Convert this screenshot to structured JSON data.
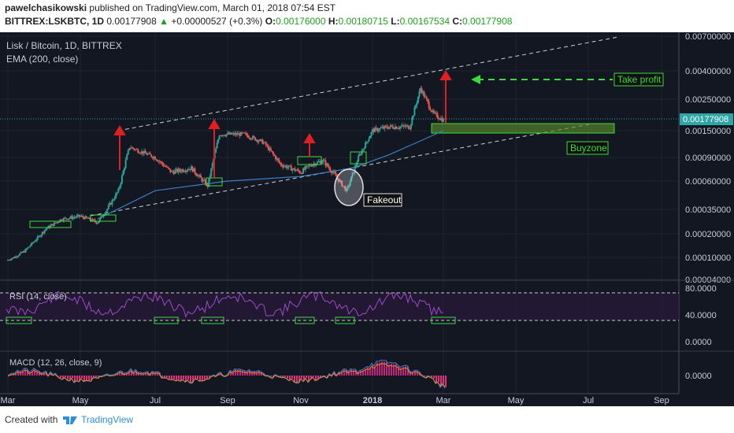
{
  "header": {
    "author": "pawelchasikowski",
    "published_text": "published on TradingView.com, March 01, 2018 07:54 EST",
    "symbol_line": "BITTREX:LSKBTC, 1D",
    "last_price": "0.00177908",
    "change": "+0.00000527 (+0.3%)",
    "o_label": "O:",
    "o_value": "0.00176000",
    "h_label": "H:",
    "h_value": "0.00180715",
    "l_label": "L:",
    "l_value": "0.00167534",
    "c_label": "C:",
    "c_value": "0.00177908"
  },
  "chart_data": {
    "type": "line",
    "title": "Lisk / Bitcoin, 1D, BITTREX",
    "indicator_label": "EMA (200, close)",
    "log_scale": true,
    "x_tick_labels": [
      "Mar",
      "May",
      "Jul",
      "Sep",
      "Nov",
      "2018",
      "Mar",
      "May",
      "Jul",
      "Sep"
    ],
    "y_tick_labels": [
      "0.00700000",
      "0.00400000",
      "0.00250000",
      "0.00150000",
      "0.00090000",
      "0.00060000",
      "0.00035000",
      "0.00020000",
      "0.00010000",
      "0.00004000"
    ],
    "current_price_label": "0.00177908",
    "series": [
      {
        "name": "Lisk / Bitcoin",
        "x": [
          "2017-03-01",
          "2017-03-15",
          "2017-04-01",
          "2017-04-15",
          "2017-05-01",
          "2017-05-15",
          "2017-06-01",
          "2017-06-10",
          "2017-07-01",
          "2017-07-15",
          "2017-08-01",
          "2017-08-15",
          "2017-08-25",
          "2017-09-15",
          "2017-10-01",
          "2017-10-15",
          "2017-11-01",
          "2017-11-10",
          "2017-11-20",
          "2017-12-01",
          "2017-12-10",
          "2017-12-20",
          "2018-01-01",
          "2018-01-15",
          "2018-02-01",
          "2018-02-10",
          "2018-02-20",
          "2018-03-01"
        ],
        "values": [
          9e-05,
          0.00012,
          0.00022,
          0.00028,
          0.0003,
          0.00026,
          0.0005,
          0.0011,
          0.0009,
          0.0007,
          0.00075,
          0.00055,
          0.0014,
          0.0014,
          0.0012,
          0.0008,
          0.0007,
          0.0008,
          0.00085,
          0.00065,
          0.0005,
          0.0009,
          0.0015,
          0.0016,
          0.0016,
          0.003,
          0.002,
          0.00177908
        ]
      },
      {
        "name": "EMA (200, close)",
        "x": [
          "2017-05-15",
          "2017-07-01",
          "2017-09-01",
          "2017-11-01",
          "2017-12-15",
          "2018-01-15",
          "2018-03-01"
        ],
        "values": [
          0.00028,
          0.0005,
          0.0006,
          0.00065,
          0.00075,
          0.00095,
          0.0015
        ]
      }
    ],
    "annotations": [
      "Take profit",
      "Buyzone",
      "Fakeout"
    ],
    "rsi": {
      "label": "RSI (14, close)",
      "y_tick_labels": [
        "80.0000",
        "40.0000",
        "0.0000"
      ],
      "upper_band": 70,
      "lower_band": 30
    },
    "macd": {
      "label": "MACD (12, 26, close, 9)",
      "y_tick_labels": [
        "0.0000"
      ]
    }
  },
  "footer": {
    "created_with": "Created with",
    "brand": "TradingView"
  }
}
